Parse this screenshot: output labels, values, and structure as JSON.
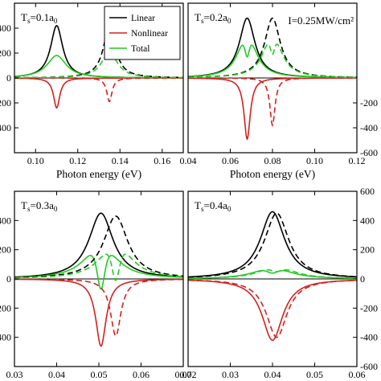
{
  "chart_data": [
    {
      "type": "line",
      "panel_label": "T_s=0.1a_0",
      "xlabel": "Photon energy (eV)",
      "xlim": [
        0.09,
        0.17
      ],
      "ylim": [
        -600,
        600
      ],
      "x_ticks": [
        "0.10",
        "0.12",
        "0.14",
        "0.16"
      ],
      "y_ticks_left": [
        "400",
        "200",
        "0",
        "-200",
        "-400"
      ],
      "y_ticks_right": [],
      "legend": {
        "position": "top-right",
        "entries": [
          "Linear",
          "Nonlinear",
          "Total"
        ]
      },
      "series": [
        {
          "name": "Linear",
          "color": "#000000",
          "dash": "solid",
          "kind": "lorentz",
          "x0": 0.11,
          "gamma": 0.0035,
          "amplitude": 420
        },
        {
          "name": "Nonlinear",
          "color": "#d62020",
          "dash": "solid",
          "kind": "lorentz",
          "x0": 0.11,
          "gamma": 0.0018,
          "amplitude": -240
        },
        {
          "name": "Total",
          "color": "#22cc22",
          "dash": "solid",
          "kind": "lorentz",
          "x0": 0.11,
          "gamma": 0.0055,
          "amplitude": 180
        },
        {
          "name": "Linear",
          "color": "#000000",
          "dash": "dashed",
          "kind": "lorentz",
          "x0": 0.135,
          "gamma": 0.0035,
          "amplitude": 410
        },
        {
          "name": "Nonlinear",
          "color": "#d62020",
          "dash": "dashed",
          "kind": "lorentz",
          "x0": 0.135,
          "gamma": 0.0015,
          "amplitude": -190
        },
        {
          "name": "Total",
          "color": "#22cc22",
          "dash": "dashed",
          "kind": "lorentz",
          "x0": 0.135,
          "gamma": 0.0045,
          "amplitude": 210
        }
      ]
    },
    {
      "type": "line",
      "panel_label": "T_s=0.2a_0",
      "annotation": "I=0.25MW/cm²",
      "xlabel": "Photon energy (eV)",
      "xlim": [
        0.04,
        0.12
      ],
      "ylim": [
        -600,
        600
      ],
      "x_ticks": [
        "0.04",
        "0.06",
        "0.08",
        "0.10",
        "0.12"
      ],
      "y_ticks_left": [],
      "y_ticks_right": [
        "-200",
        "-400",
        "-600"
      ],
      "series": [
        {
          "name": "Linear",
          "color": "#000000",
          "dash": "solid",
          "kind": "lorentz",
          "x0": 0.068,
          "gamma": 0.0045,
          "amplitude": 480
        },
        {
          "name": "Nonlinear",
          "color": "#d62020",
          "dash": "solid",
          "kind": "lorentz",
          "x0": 0.068,
          "gamma": 0.0018,
          "amplitude": -490
        },
        {
          "name": "Total",
          "color": "#22cc22",
          "dash": "solid",
          "kind": "dip",
          "x0": 0.068,
          "gamma": 0.0045,
          "amplitude": 480,
          "dip_gamma": 0.0018,
          "dip_amplitude": -310
        },
        {
          "name": "Linear",
          "color": "#000000",
          "dash": "dashed",
          "kind": "lorentz",
          "x0": 0.08,
          "gamma": 0.0045,
          "amplitude": 480
        },
        {
          "name": "Nonlinear",
          "color": "#d62020",
          "dash": "dashed",
          "kind": "lorentz",
          "x0": 0.08,
          "gamma": 0.0015,
          "amplitude": -380
        },
        {
          "name": "Total",
          "color": "#22cc22",
          "dash": "dashed",
          "kind": "dip",
          "x0": 0.08,
          "gamma": 0.0045,
          "amplitude": 480,
          "dip_gamma": 0.0018,
          "dip_amplitude": -290
        }
      ]
    },
    {
      "type": "line",
      "panel_label": "T_s=0.3a_0",
      "xlabel": "Photon energy (eV)",
      "xlim": [
        0.03,
        0.07
      ],
      "ylim": [
        -600,
        600
      ],
      "x_ticks": [
        "0.03",
        "0.04",
        "0.05",
        "0.06",
        "0.07"
      ],
      "y_ticks_left": [
        "400",
        "200",
        "0",
        "-200",
        "-400"
      ],
      "y_ticks_right": [],
      "series": [
        {
          "name": "Linear",
          "color": "#000000",
          "dash": "solid",
          "kind": "lorentz",
          "x0": 0.0505,
          "gamma": 0.0035,
          "amplitude": 450
        },
        {
          "name": "Nonlinear",
          "color": "#d62020",
          "dash": "solid",
          "kind": "lorentz",
          "x0": 0.0505,
          "gamma": 0.0015,
          "amplitude": -460
        },
        {
          "name": "Total",
          "color": "#22cc22",
          "dash": "solid",
          "kind": "dip",
          "x0": 0.0505,
          "gamma": 0.0035,
          "amplitude": 450,
          "dip_gamma": 0.0015,
          "dip_amplitude": -520
        },
        {
          "name": "Linear",
          "color": "#000000",
          "dash": "dashed",
          "kind": "lorentz",
          "x0": 0.054,
          "gamma": 0.0035,
          "amplitude": 430
        },
        {
          "name": "Nonlinear",
          "color": "#d62020",
          "dash": "dashed",
          "kind": "lorentz",
          "x0": 0.054,
          "gamma": 0.0015,
          "amplitude": -390
        },
        {
          "name": "Total",
          "color": "#22cc22",
          "dash": "dashed",
          "kind": "dip",
          "x0": 0.054,
          "gamma": 0.0035,
          "amplitude": 430,
          "dip_gamma": 0.0015,
          "dip_amplitude": -440
        }
      ]
    },
    {
      "type": "line",
      "panel_label": "T_s=0.4a_0",
      "xlabel": "Photon energy (eV)",
      "xlim": [
        0.02,
        0.06
      ],
      "ylim": [
        -600,
        600
      ],
      "x_ticks": [
        "0.02",
        "0.03",
        "0.04",
        "0.05",
        "0.06"
      ],
      "y_ticks_left": [],
      "y_ticks_right": [
        "600",
        "400",
        "200",
        "0",
        "-200",
        "-400",
        "-600"
      ],
      "series": [
        {
          "name": "Linear",
          "color": "#000000",
          "dash": "solid",
          "kind": "lorentz",
          "x0": 0.04,
          "gamma": 0.0035,
          "amplitude": 460
        },
        {
          "name": "Nonlinear",
          "color": "#d62020",
          "dash": "solid",
          "kind": "lorentz",
          "x0": 0.04,
          "gamma": 0.003,
          "amplitude": -420
        },
        {
          "name": "Total",
          "color": "#22cc22",
          "dash": "solid",
          "kind": "dip",
          "x0": 0.04,
          "gamma": 0.0035,
          "amplitude": 460,
          "dip_gamma": 0.003,
          "dip_amplitude": -420
        },
        {
          "name": "Linear",
          "color": "#000000",
          "dash": "dashed",
          "kind": "lorentz",
          "x0": 0.041,
          "gamma": 0.0035,
          "amplitude": 450
        },
        {
          "name": "Nonlinear",
          "color": "#d62020",
          "dash": "dashed",
          "kind": "lorentz",
          "x0": 0.041,
          "gamma": 0.003,
          "amplitude": -400
        },
        {
          "name": "Total",
          "color": "#22cc22",
          "dash": "dashed",
          "kind": "dip",
          "x0": 0.041,
          "gamma": 0.0035,
          "amplitude": 450,
          "dip_gamma": 0.003,
          "dip_amplitude": -400
        }
      ]
    }
  ]
}
